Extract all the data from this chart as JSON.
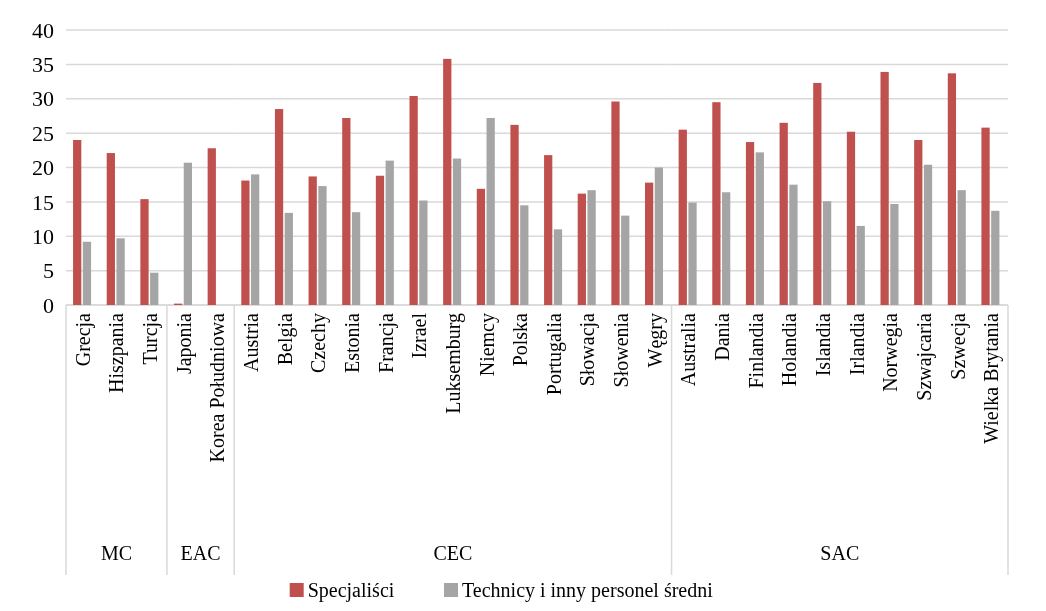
{
  "chart_data": [
    {
      "type": "bar",
      "categories": [
        "Grecja",
        "Hiszpania",
        "Turcja"
      ],
      "xlabel": "MC",
      "series": [
        {
          "name": "Specjaliści",
          "color": "#c0504d",
          "values": [
            24.0,
            22.1,
            15.4
          ]
        },
        {
          "name": "Technicy i inny personel średni",
          "color": "#a5a5a5",
          "values": [
            9.2,
            9.7,
            4.7
          ]
        }
      ],
      "ylim": [
        0,
        40
      ],
      "yticks": [
        0,
        5,
        10,
        15,
        20,
        25,
        30,
        35,
        40
      ],
      "grid": "y",
      "legend": "bottom"
    },
    {
      "type": "bar",
      "categories": [
        "Japonia",
        "Korea Południowa"
      ],
      "xlabel": "EAC",
      "series": [
        {
          "color": "#c0504d",
          "values": [
            0.2,
            22.8
          ]
        },
        {
          "color": "#a5a5a5",
          "values": [
            20.7,
            null
          ]
        }
      ],
      "ylim": [
        0,
        40
      ],
      "yticks": [
        0,
        5,
        10,
        15,
        20,
        25,
        30,
        35,
        40
      ],
      "grid": "y",
      "tick_labels": "x"
    },
    {
      "type": "bar",
      "categories": [
        "Austria",
        "Belgia",
        "Czechy",
        "Estonia",
        "Francja",
        "Izrael",
        "Luksemburg",
        "Niemcy",
        "Polska",
        "Portugalia",
        "Słowacja",
        "Słowenia",
        "Węgry"
      ],
      "xlabel": "CEC",
      "series": [
        {
          "color": "#c0504d",
          "values": [
            18.1,
            28.5,
            18.7,
            27.2,
            18.8,
            30.4,
            35.8,
            16.9,
            26.2,
            21.8,
            16.2,
            29.6,
            17.8
          ]
        },
        {
          "color": "#a5a5a5",
          "values": [
            19.0,
            13.4,
            17.3,
            13.5,
            21.0,
            15.2,
            21.3,
            27.2,
            14.5,
            11.0,
            16.7,
            13.0,
            20.0
          ]
        }
      ],
      "ylim": [
        0,
        40
      ],
      "yticks": [
        0,
        5,
        10,
        15,
        20,
        25,
        30,
        35,
        40
      ],
      "grid": "y",
      "tick_labels": "x"
    },
    {
      "type": "bar",
      "categories": [
        "Australia",
        "Dania",
        "Finlandia",
        "Holandia",
        "Islandia",
        "Irlandia",
        "Norwegia",
        "Szwajcaria",
        "Szwecja",
        "Wielka Brytania"
      ],
      "xlabel": "SAC",
      "series": [
        {
          "color": "#c0504d",
          "values": [
            25.5,
            29.5,
            23.7,
            26.5,
            32.3,
            25.2,
            33.9,
            24.0,
            33.7,
            25.8
          ]
        },
        {
          "color": "#a5a5a5",
          "values": [
            14.9,
            16.4,
            22.2,
            17.5,
            15.1,
            11.5,
            14.7,
            20.4,
            16.7,
            13.7
          ]
        }
      ],
      "ylim": [
        0,
        40
      ],
      "yticks": [
        0,
        5,
        10,
        15,
        20,
        25,
        30,
        35,
        40
      ],
      "grid": "y",
      "tick_labels": "x"
    }
  ]
}
